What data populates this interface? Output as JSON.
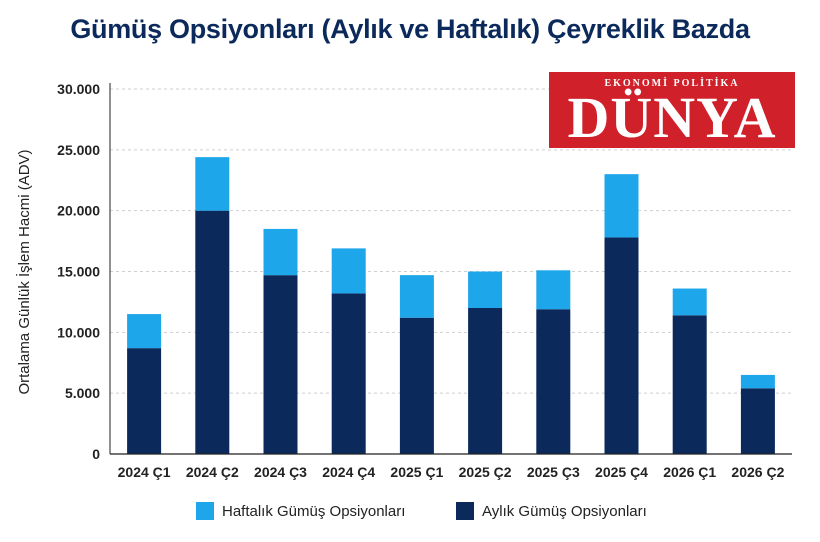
{
  "header": {
    "title": "Gümüş Opsiyonları (Aylık ve Haftalık) Çeyreklik Bazda"
  },
  "logo": {
    "subtitle": "EKONOMİ POLİTİKA",
    "name": "DÜNYA"
  },
  "colors": {
    "weekly": "#1ea6ea",
    "monthly": "#0b2a5b",
    "grid": "#cfcfcf",
    "axis": "#222222"
  },
  "chart_data": {
    "type": "bar",
    "stacked": true,
    "title": "Gümüş Opsiyonları (Aylık ve Haftalık) Çeyreklik Bazda",
    "ylabel": "Ortalama Günlük İşlem Hacmi (ADV)",
    "xlabel": "",
    "ylim": [
      0,
      30000
    ],
    "yticks": [
      "0",
      "5.000",
      "10.000",
      "15.000",
      "20.000",
      "25.000",
      "30.000"
    ],
    "ytick_values": [
      0,
      5000,
      10000,
      15000,
      20000,
      25000,
      30000
    ],
    "categories": [
      "2024 Ç1",
      "2024 Ç2",
      "2024 Ç3",
      "2024 Ç4",
      "2025 Ç1",
      "2025 Ç2",
      "2025 Ç3",
      "2025 Ç4",
      "2026 Ç1",
      "2026 Ç2"
    ],
    "series": [
      {
        "name": "Aylık Gümüş Opsiyonları",
        "values": [
          8700,
          20000,
          14700,
          13200,
          11200,
          12000,
          11900,
          17800,
          11400,
          5400
        ]
      },
      {
        "name": "Haftalık Gümüş Opsiyonları",
        "values": [
          2800,
          4400,
          3800,
          3700,
          3500,
          3000,
          3200,
          5200,
          2200,
          1100
        ]
      }
    ],
    "grid": true,
    "legend_position": "bottom"
  }
}
